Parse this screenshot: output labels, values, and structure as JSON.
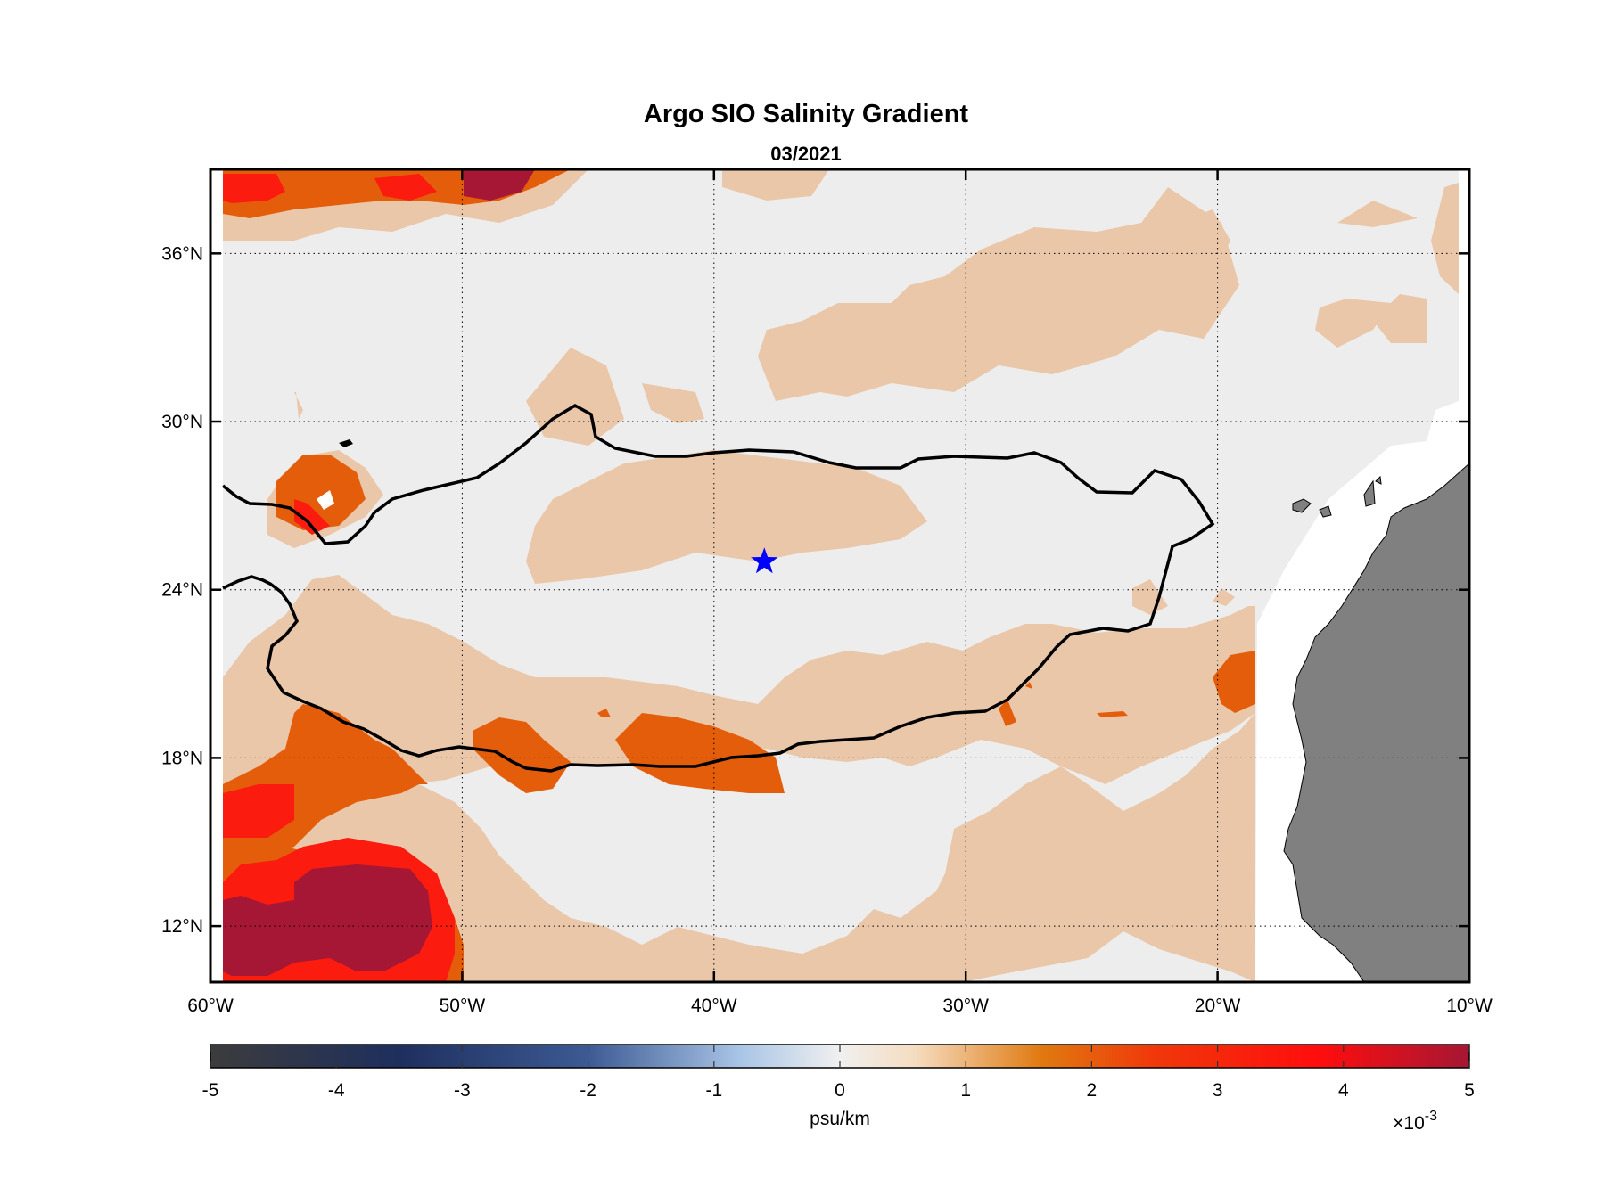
{
  "title": "Argo SIO Salinity Gradient",
  "subtitle": "03/2021",
  "map": {
    "lon_range": [
      -60,
      -10
    ],
    "lat_range": [
      10,
      39
    ],
    "x_ticks": [
      {
        "value": -60,
        "label": "60°W"
      },
      {
        "value": -50,
        "label": "50°W"
      },
      {
        "value": -40,
        "label": "40°W"
      },
      {
        "value": -30,
        "label": "30°W"
      },
      {
        "value": -20,
        "label": "20°W"
      },
      {
        "value": -10,
        "label": "10°W"
      }
    ],
    "y_ticks": [
      {
        "value": 12,
        "label": "12°N"
      },
      {
        "value": 18,
        "label": "18°N"
      },
      {
        "value": 24,
        "label": "24°N"
      },
      {
        "value": 30,
        "label": "30°N"
      },
      {
        "value": 36,
        "label": "36°N"
      }
    ],
    "grid": "dotted",
    "marker": {
      "lon": -38,
      "lat": 25,
      "symbol": "star",
      "color": "#0000ff"
    },
    "colors": {
      "background": "#ededed",
      "level1": "#eac7a9",
      "level2": "#e35d0a",
      "level3": "#fb1b0f",
      "level4": "#a51734",
      "land": "#808080",
      "contour": "#000000"
    }
  },
  "colorbar": {
    "ticks": [
      "-5",
      "-4",
      "-3",
      "-2",
      "-1",
      "0",
      "1",
      "2",
      "3",
      "4",
      "5"
    ],
    "units": "psu/km",
    "scale": "×10",
    "scale_exp": "-3",
    "range": [
      -5,
      5
    ],
    "stops": [
      "#3c3c3c",
      "#1e2f5e",
      "#3d5a94",
      "#a8c4e6",
      "#f0f0f0",
      "#f5dcc0",
      "#e07a10",
      "#f0380a",
      "#ff0d0d",
      "#a51734"
    ]
  }
}
